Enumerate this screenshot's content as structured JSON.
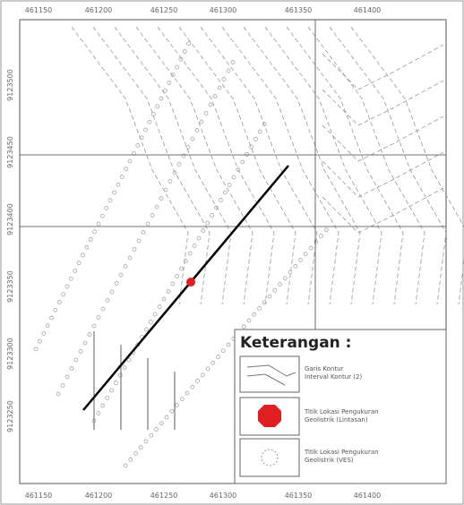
{
  "map": {
    "top_labels": [
      "461150",
      "461200",
      "461250",
      "461300",
      "461350",
      "461400"
    ],
    "bottom_labels": [
      "461150",
      "461200",
      "461250",
      "461300",
      "461350",
      "461400"
    ],
    "left_labels": [
      "9123500",
      "9123450",
      "9123400",
      "9123350",
      "9123300",
      "9123250"
    ],
    "legend": {
      "title": "Keterangan :",
      "items": [
        {
          "label": "Garis Kontur",
          "sublabel": "Interval Kontur (2)"
        },
        {
          "label": "Titik Lokasi Pengukuran",
          "sublabel": "Geolistrik (Lintasan)"
        },
        {
          "label": "Titik Lokasi Pengukuran",
          "sublabel": "Geolistrik (VES)"
        }
      ]
    }
  }
}
